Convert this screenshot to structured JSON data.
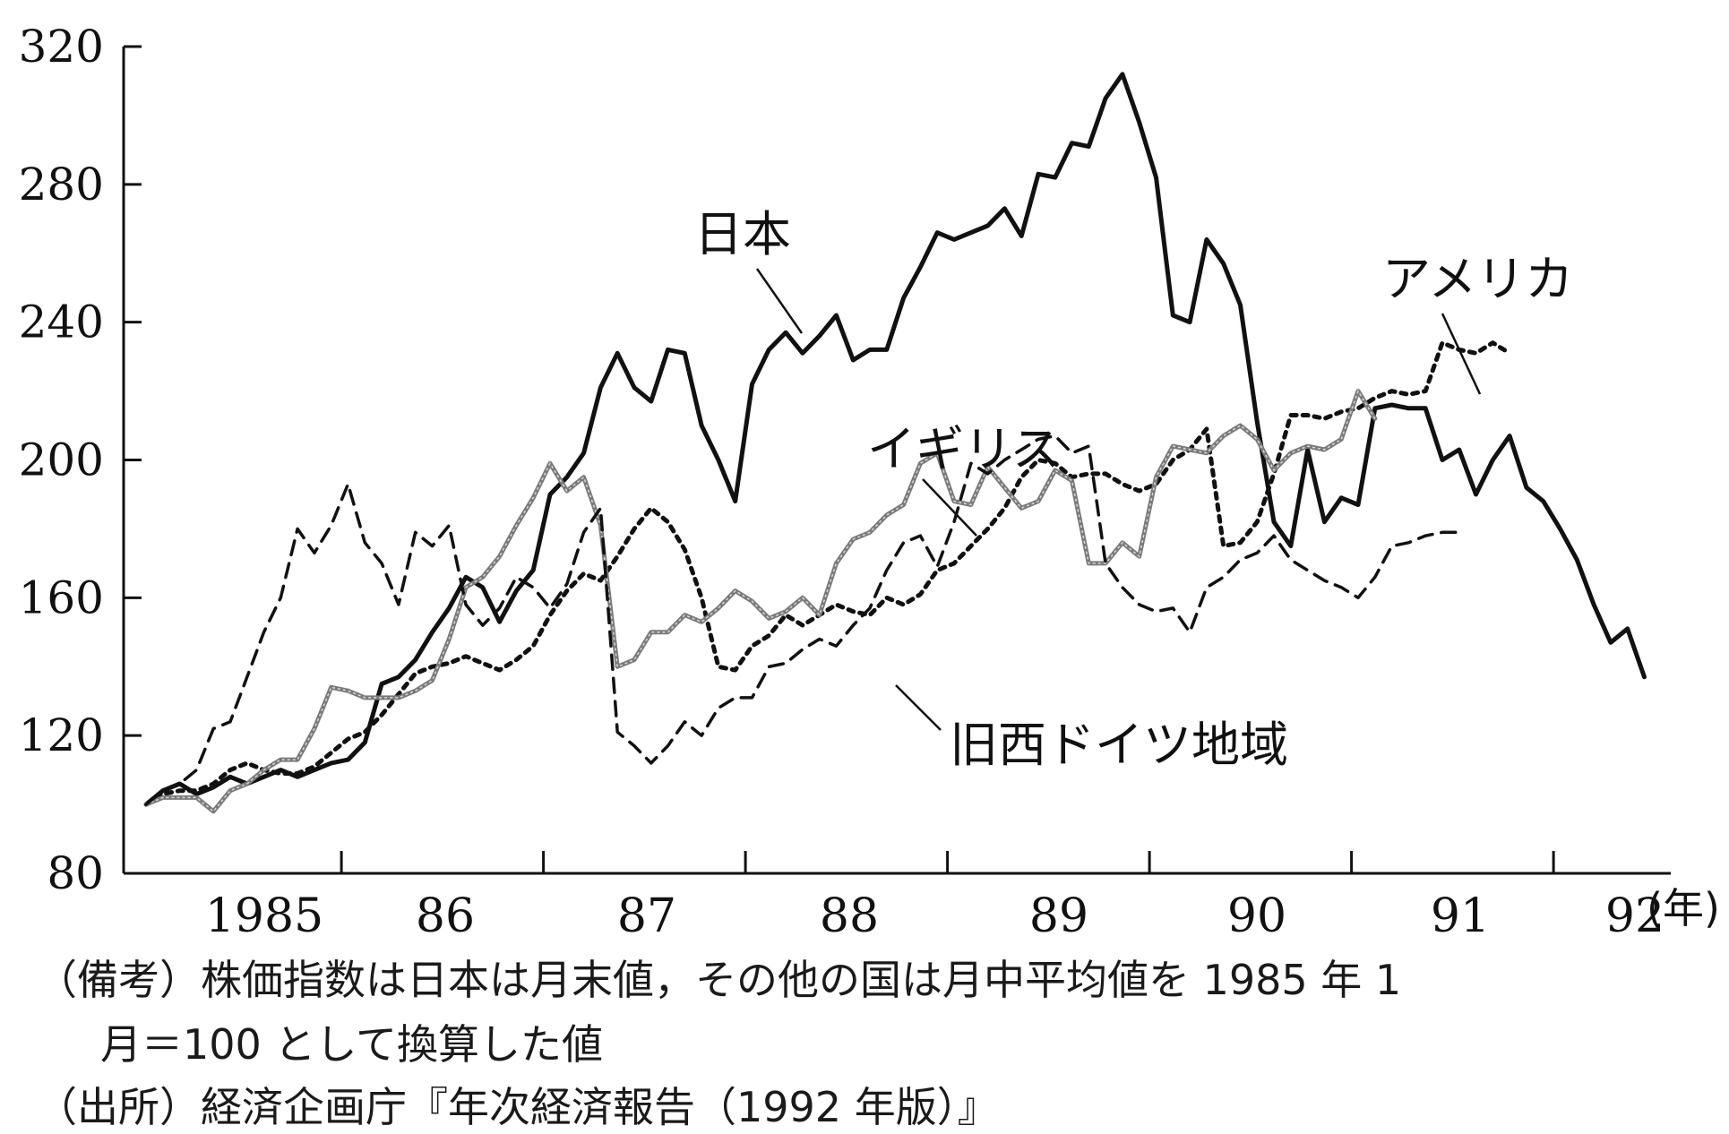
{
  "chart_data": {
    "type": "line",
    "x_unit_label": "(年)",
    "x_ticks": [
      "1985",
      "86",
      "87",
      "88",
      "89",
      "90",
      "91",
      "92"
    ],
    "y_ticks": [
      80,
      120,
      160,
      200,
      240,
      280,
      320
    ],
    "ylim": [
      80,
      320
    ],
    "x_start": 1985.0,
    "x_step_months": 1,
    "series": [
      {
        "name": "日本",
        "style": "solid-thick",
        "color": "#111111",
        "values": [
          100,
          104,
          106,
          103,
          105,
          108,
          106,
          108,
          110,
          108,
          110,
          112,
          113,
          118,
          135,
          137,
          142,
          150,
          157,
          166,
          163,
          153,
          162,
          168,
          190,
          195,
          202,
          221,
          231,
          221,
          217,
          232,
          231,
          210,
          200,
          188,
          222,
          232,
          237,
          231,
          236,
          242,
          229,
          232,
          232,
          247,
          256,
          266,
          264,
          266,
          268,
          273,
          265,
          283,
          282,
          292,
          291,
          305,
          312,
          298,
          282,
          242,
          240,
          264,
          257,
          245,
          211,
          182,
          175,
          203,
          182,
          189,
          187,
          215,
          216,
          215,
          215,
          200,
          203,
          190,
          200,
          207,
          192,
          188,
          180,
          171,
          158,
          147,
          151,
          137
        ]
      },
      {
        "name": "アメリカ",
        "style": "dotted",
        "color": "#111111",
        "values": [
          100,
          103,
          104,
          104,
          106,
          110,
          112,
          110,
          109,
          109,
          111,
          115,
          119,
          121,
          126,
          132,
          138,
          140,
          141,
          143,
          141,
          139,
          142,
          146,
          155,
          162,
          167,
          165,
          172,
          180,
          186,
          182,
          174,
          160,
          140,
          139,
          146,
          149,
          155,
          152,
          155,
          158,
          156,
          155,
          160,
          158,
          161,
          168,
          170,
          175,
          180,
          186,
          195,
          200,
          199,
          195,
          196,
          196,
          193,
          191,
          193,
          200,
          203,
          209,
          175,
          176,
          182,
          196,
          213,
          213,
          212,
          214,
          215,
          218,
          220,
          219,
          220,
          234,
          232,
          231,
          234,
          231
        ]
      },
      {
        "name": "イギリス",
        "style": "gray-rope",
        "color": "#7a7a7a",
        "values": [
          100,
          102,
          102,
          102,
          98,
          104,
          106,
          110,
          113,
          113,
          122,
          134,
          133,
          131,
          131,
          131,
          133,
          136,
          148,
          163,
          166,
          172,
          181,
          189,
          199,
          191,
          195,
          181,
          140,
          142,
          150,
          150,
          155,
          153,
          157,
          162,
          159,
          154,
          156,
          160,
          155,
          170,
          177,
          179,
          184,
          187,
          199,
          202,
          188,
          187,
          198,
          192,
          186,
          188,
          197,
          194,
          170,
          170,
          176,
          172,
          195,
          204,
          203,
          202,
          207,
          210,
          206,
          197,
          202,
          204,
          203,
          206,
          220,
          212
        ]
      },
      {
        "name": "旧西ドイツ地域",
        "style": "dashed",
        "color": "#111111",
        "values": [
          100,
          104,
          106,
          110,
          122,
          124,
          137,
          150,
          160,
          180,
          173,
          181,
          193,
          176,
          170,
          158,
          179,
          175,
          181,
          158,
          152,
          157,
          166,
          163,
          157,
          164,
          179,
          186,
          121,
          117,
          112,
          117,
          124,
          120,
          128,
          131,
          131,
          140,
          141,
          145,
          148,
          146,
          152,
          157,
          168,
          176,
          178,
          169,
          182,
          199,
          196,
          200,
          203,
          206,
          207,
          202,
          204,
          170,
          163,
          158,
          156,
          157,
          150,
          163,
          166,
          171,
          173,
          178,
          171,
          168,
          165,
          163,
          160,
          166,
          175,
          176,
          178,
          179,
          179
        ]
      }
    ],
    "annotations": [
      "日本",
      "アメリカ",
      "イギリス",
      "旧西ドイツ地域"
    ]
  },
  "notes": {
    "line1": "（備考）株価指数は日本は月末値，その他の国は月中平均値を 1985 年 1",
    "line2": "月＝100 として換算した値",
    "line3": "（出所）経済企画庁『年次経済報告（1992 年版）』"
  }
}
